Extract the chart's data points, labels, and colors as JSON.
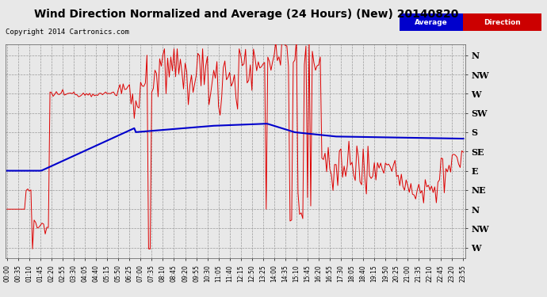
{
  "title": "Wind Direction Normalized and Average (24 Hours) (New) 20140820",
  "copyright": "Copyright 2014 Cartronics.com",
  "background_color": "#e8e8e8",
  "plot_bg": "#e8e8e8",
  "grid_color": "#999999",
  "yticks": [
    360,
    315,
    270,
    225,
    180,
    135,
    90,
    45,
    0,
    -45,
    -90
  ],
  "yticklabels": [
    "N",
    "NW",
    "W",
    "SW",
    "S",
    "SE",
    "E",
    "NE",
    "N",
    "NW",
    "W"
  ],
  "ylim": [
    -115,
    385
  ],
  "line_red": "#dd0000",
  "line_blue": "#0000cc",
  "legend_avg_bg": "#0000cc",
  "legend_dir_bg": "#cc0000",
  "title_fontsize": 10,
  "copyright_fontsize": 6.5
}
